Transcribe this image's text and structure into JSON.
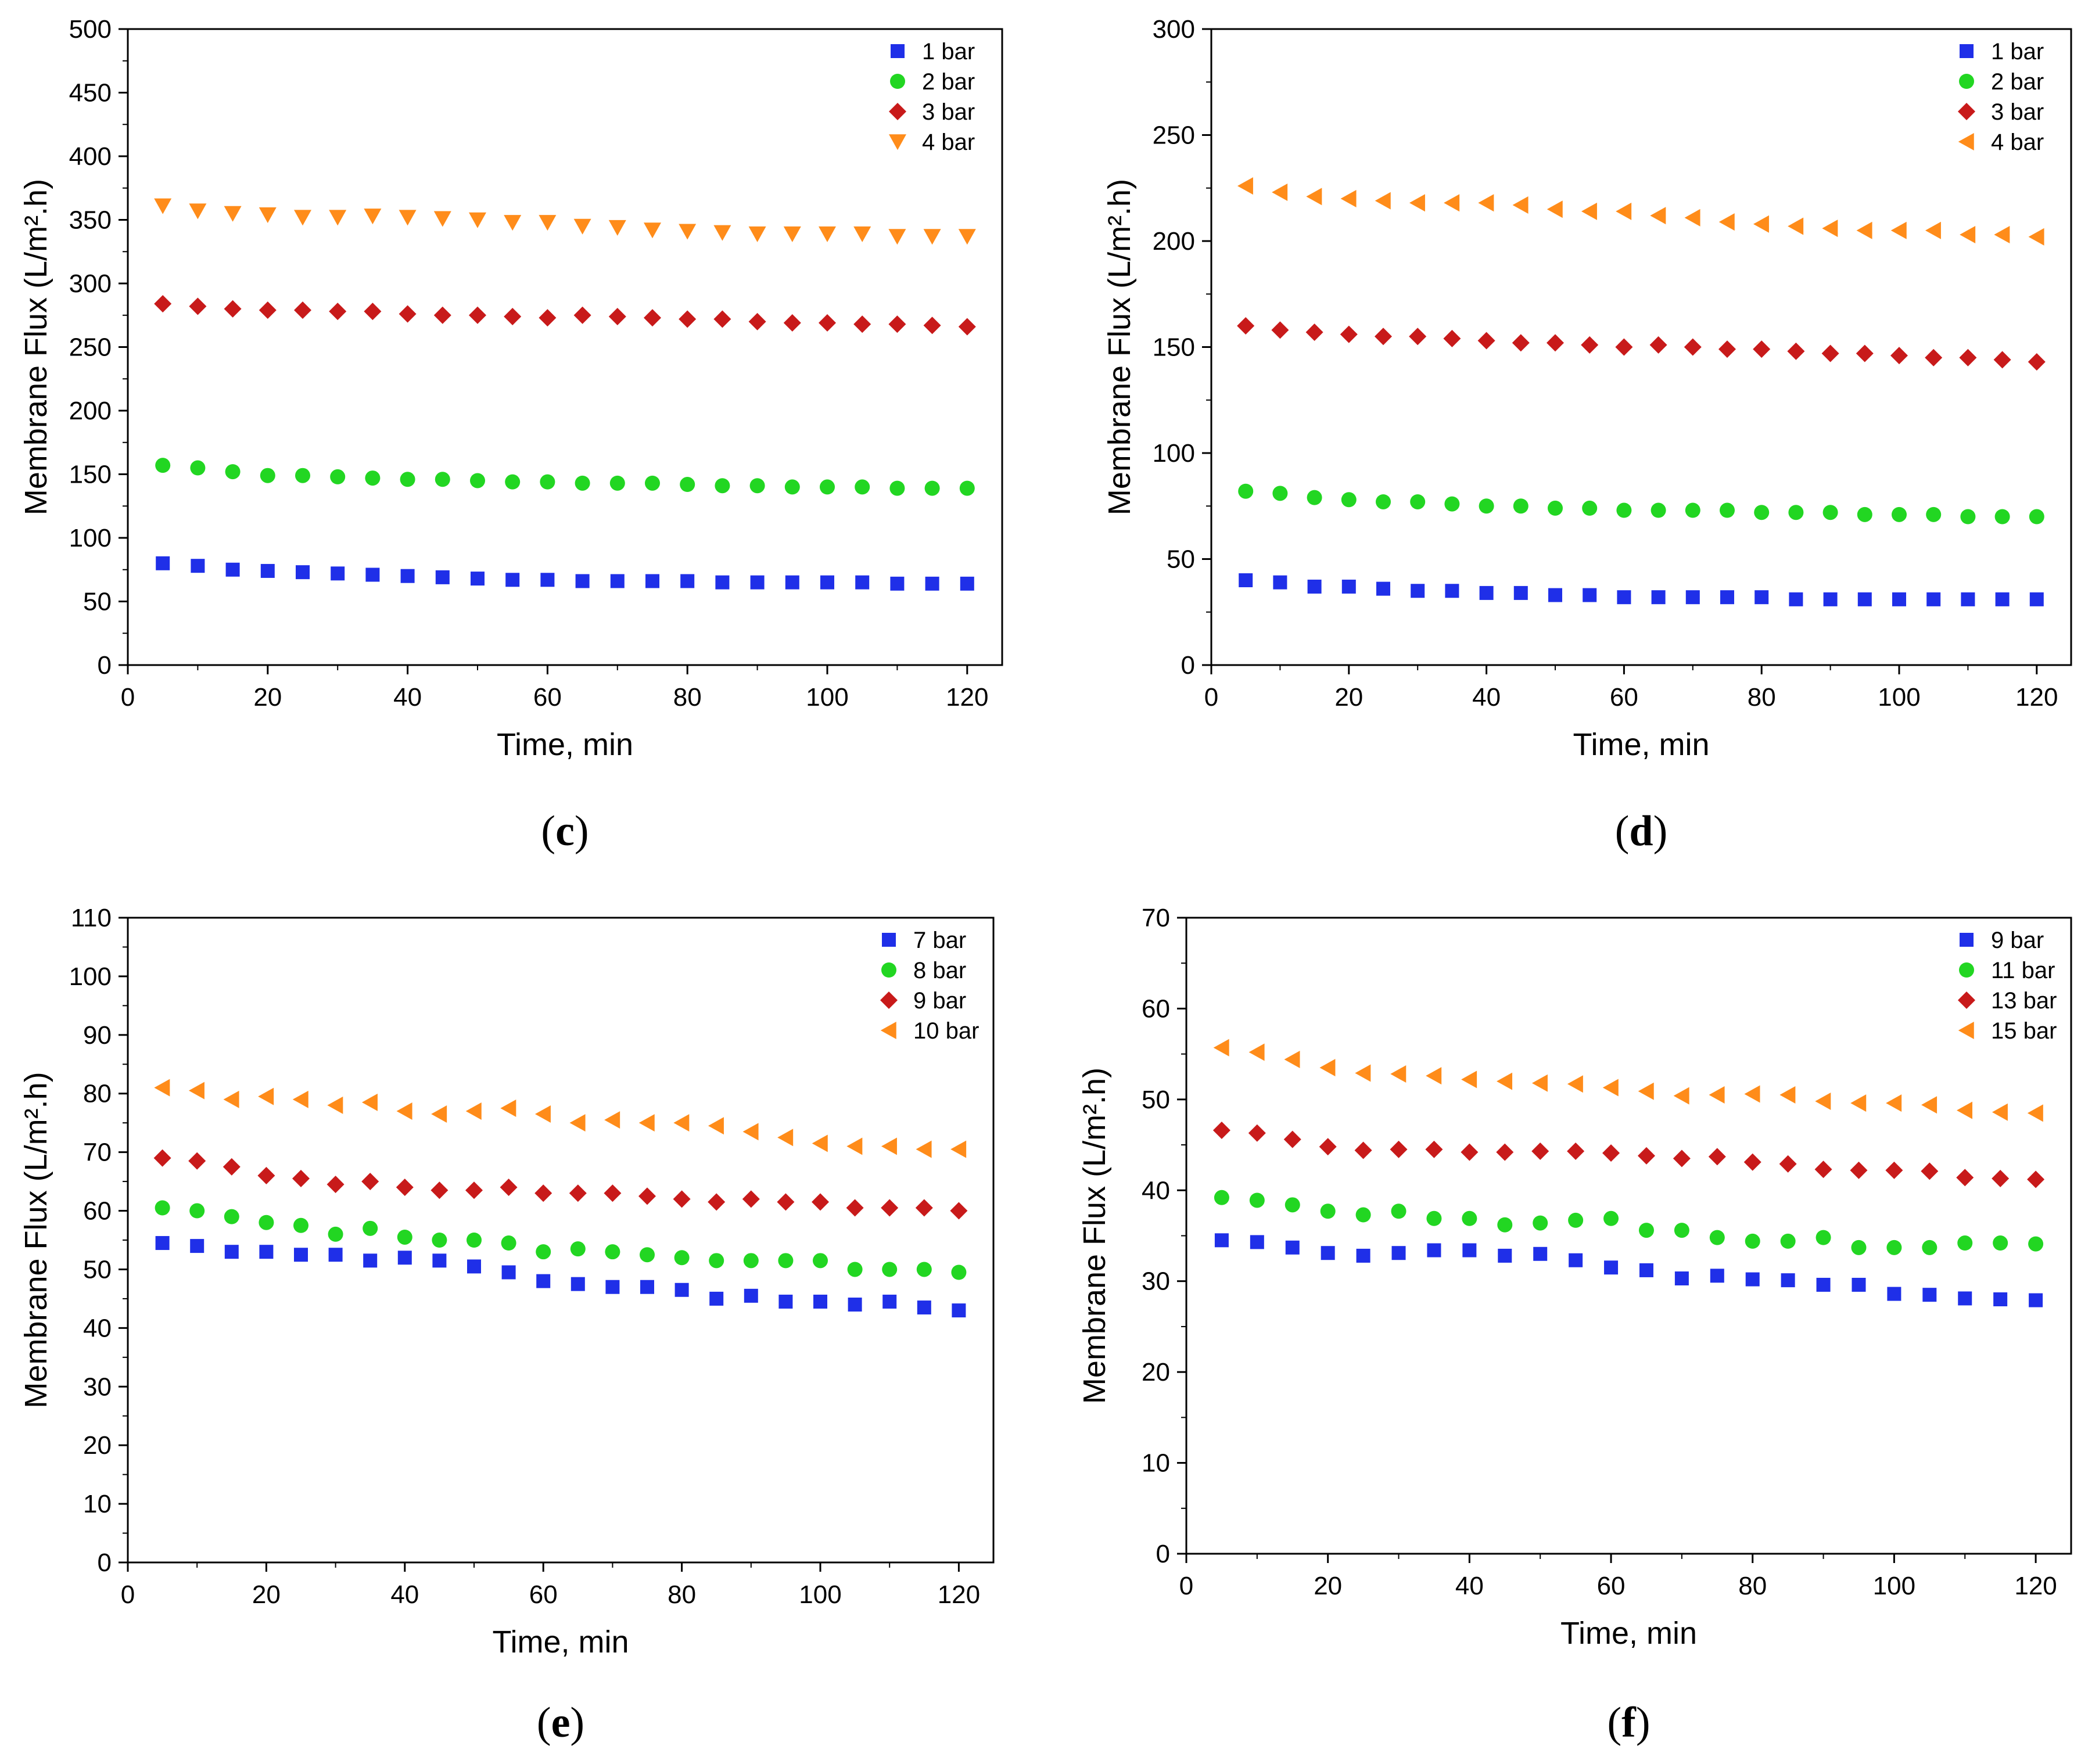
{
  "chart_data": [
    {
      "type": "scatter",
      "panel_label": "c",
      "xlabel": "Time, min",
      "ylabel": "Membrane Flux (L/m².h)",
      "xlim": [
        0,
        125
      ],
      "ylim": [
        0,
        500
      ],
      "xticks": [
        0,
        20,
        40,
        60,
        80,
        100,
        120
      ],
      "yticks": [
        0,
        50,
        100,
        150,
        200,
        250,
        300,
        350,
        400,
        450,
        500
      ],
      "legend_position": "top-right",
      "x": [
        5,
        10,
        15,
        20,
        25,
        30,
        35,
        40,
        45,
        50,
        55,
        60,
        65,
        70,
        75,
        80,
        85,
        90,
        95,
        100,
        105,
        110,
        115,
        120
      ],
      "series": [
        {
          "name": "1 bar",
          "marker": "square",
          "color": "#1f2fe8",
          "values": [
            80,
            78,
            75,
            74,
            73,
            72,
            71,
            70,
            69,
            68,
            67,
            67,
            66,
            66,
            66,
            66,
            65,
            65,
            65,
            65,
            65,
            64,
            64,
            64
          ]
        },
        {
          "name": "2 bar",
          "marker": "circle",
          "color": "#22d622",
          "values": [
            157,
            155,
            152,
            149,
            149,
            148,
            147,
            146,
            146,
            145,
            144,
            144,
            143,
            143,
            143,
            142,
            141,
            141,
            140,
            140,
            140,
            139,
            139,
            139
          ]
        },
        {
          "name": "3 bar",
          "marker": "diamond",
          "color": "#c81a1a",
          "values": [
            284,
            282,
            280,
            279,
            279,
            278,
            278,
            276,
            275,
            275,
            274,
            273,
            275,
            274,
            273,
            272,
            272,
            270,
            269,
            269,
            268,
            268,
            267,
            266
          ]
        },
        {
          "name": "4 bar",
          "marker": "triangle-down",
          "color": "#ff8c1a",
          "values": [
            361,
            357,
            355,
            354,
            352,
            352,
            353,
            352,
            351,
            350,
            348,
            348,
            345,
            344,
            342,
            341,
            340,
            339,
            339,
            339,
            339,
            337,
            337,
            337
          ]
        }
      ]
    },
    {
      "type": "scatter",
      "panel_label": "d",
      "xlabel": "Time, min",
      "ylabel": "Membrane Flux (L/m².h)",
      "xlim": [
        0,
        125
      ],
      "ylim": [
        0,
        300
      ],
      "xticks": [
        0,
        20,
        40,
        60,
        80,
        100,
        120
      ],
      "yticks": [
        0,
        50,
        100,
        150,
        200,
        250,
        300
      ],
      "legend_position": "top-right",
      "x": [
        5,
        10,
        15,
        20,
        25,
        30,
        35,
        40,
        45,
        50,
        55,
        60,
        65,
        70,
        75,
        80,
        85,
        90,
        95,
        100,
        105,
        110,
        115,
        120
      ],
      "series": [
        {
          "name": "1 bar",
          "marker": "square",
          "color": "#1f2fe8",
          "values": [
            40,
            39,
            37,
            37,
            36,
            35,
            35,
            34,
            34,
            33,
            33,
            32,
            32,
            32,
            32,
            32,
            31,
            31,
            31,
            31,
            31,
            31,
            31,
            31
          ]
        },
        {
          "name": "2 bar",
          "marker": "circle",
          "color": "#22d622",
          "values": [
            82,
            81,
            79,
            78,
            77,
            77,
            76,
            75,
            75,
            74,
            74,
            73,
            73,
            73,
            73,
            72,
            72,
            72,
            71,
            71,
            71,
            70,
            70,
            70
          ]
        },
        {
          "name": "3 bar",
          "marker": "diamond",
          "color": "#c81a1a",
          "values": [
            160,
            158,
            157,
            156,
            155,
            155,
            154,
            153,
            152,
            152,
            151,
            150,
            151,
            150,
            149,
            149,
            148,
            147,
            147,
            146,
            145,
            145,
            144,
            143
          ]
        },
        {
          "name": "4 bar",
          "marker": "triangle-left",
          "color": "#ff8c1a",
          "values": [
            226,
            223,
            221,
            220,
            219,
            218,
            218,
            218,
            217,
            215,
            214,
            214,
            212,
            211,
            209,
            208,
            207,
            206,
            205,
            205,
            205,
            203,
            203,
            202
          ]
        }
      ]
    },
    {
      "type": "scatter",
      "panel_label": "e",
      "xlabel": "Time, min",
      "ylabel": "Membrane Flux (L/m².h)",
      "xlim": [
        0,
        125
      ],
      "ylim": [
        0,
        110
      ],
      "xticks": [
        0,
        20,
        40,
        60,
        80,
        100,
        120
      ],
      "yticks": [
        0,
        10,
        20,
        30,
        40,
        50,
        60,
        70,
        80,
        90,
        100,
        110
      ],
      "legend_position": "top-right",
      "x": [
        5,
        10,
        15,
        20,
        25,
        30,
        35,
        40,
        45,
        50,
        55,
        60,
        65,
        70,
        75,
        80,
        85,
        90,
        95,
        100,
        105,
        110,
        115,
        120
      ],
      "series": [
        {
          "name": "7 bar",
          "marker": "square",
          "color": "#1f2fe8",
          "values": [
            54.5,
            54,
            53,
            53,
            52.5,
            52.5,
            51.5,
            52,
            51.5,
            50.5,
            49.5,
            48,
            47.5,
            47,
            47,
            46.5,
            45,
            45.5,
            44.5,
            44.5,
            44,
            44.5,
            43.5,
            43
          ]
        },
        {
          "name": "8 bar",
          "marker": "circle",
          "color": "#22d622",
          "values": [
            60.5,
            60,
            59,
            58,
            57.5,
            56,
            57,
            55.5,
            55,
            55,
            54.5,
            53,
            53.5,
            53,
            52.5,
            52,
            51.5,
            51.5,
            51.5,
            51.5,
            50,
            50,
            50,
            49.5
          ]
        },
        {
          "name": "9 bar",
          "marker": "diamond",
          "color": "#c81a1a",
          "values": [
            69,
            68.5,
            67.5,
            66,
            65.5,
            64.5,
            65,
            64,
            63.5,
            63.5,
            64,
            63,
            63,
            63,
            62.5,
            62,
            61.5,
            62,
            61.5,
            61.5,
            60.5,
            60.5,
            60.5,
            60
          ]
        },
        {
          "name": "10 bar",
          "marker": "triangle-left",
          "color": "#ff8c1a",
          "values": [
            81,
            80.5,
            79,
            79.5,
            79,
            78,
            78.5,
            77,
            76.5,
            77,
            77.5,
            76.5,
            75,
            75.5,
            75,
            75,
            74.5,
            73.5,
            72.5,
            71.5,
            71,
            71,
            70.5,
            70.5
          ]
        }
      ]
    },
    {
      "type": "scatter",
      "panel_label": "f",
      "xlabel": "Time, min",
      "ylabel": "Membrane Flux (L/m².h)",
      "xlim": [
        0,
        125
      ],
      "ylim": [
        0,
        70
      ],
      "xticks": [
        0,
        20,
        40,
        60,
        80,
        100,
        120
      ],
      "yticks": [
        0,
        10,
        20,
        30,
        40,
        50,
        60,
        70
      ],
      "legend_position": "top-right",
      "x": [
        5,
        10,
        15,
        20,
        25,
        30,
        35,
        40,
        45,
        50,
        55,
        60,
        65,
        70,
        75,
        80,
        85,
        90,
        95,
        100,
        105,
        110,
        115,
        120
      ],
      "series": [
        {
          "name": "9 bar",
          "marker": "square",
          "color": "#1f2fe8",
          "values": [
            34.5,
            34.3,
            33.7,
            33.1,
            32.8,
            33.1,
            33.4,
            33.4,
            32.8,
            33,
            32.3,
            31.5,
            31.2,
            30.3,
            30.6,
            30.2,
            30.1,
            29.6,
            29.6,
            28.6,
            28.5,
            28.1,
            28,
            27.9
          ]
        },
        {
          "name": "11 bar",
          "marker": "circle",
          "color": "#22d622",
          "values": [
            39.2,
            38.9,
            38.4,
            37.7,
            37.3,
            37.7,
            36.9,
            36.9,
            36.2,
            36.4,
            36.7,
            36.9,
            35.6,
            35.6,
            34.8,
            34.4,
            34.4,
            34.8,
            33.7,
            33.7,
            33.7,
            34.2,
            34.2,
            34.1
          ]
        },
        {
          "name": "13 bar",
          "marker": "diamond",
          "color": "#c81a1a",
          "values": [
            46.6,
            46.3,
            45.6,
            44.8,
            44.4,
            44.5,
            44.5,
            44.2,
            44.2,
            44.3,
            44.3,
            44.1,
            43.8,
            43.5,
            43.7,
            43.1,
            42.9,
            42.3,
            42.2,
            42.2,
            42.1,
            41.4,
            41.3,
            41.2
          ]
        },
        {
          "name": "15 bar",
          "marker": "triangle-left",
          "color": "#ff8c1a",
          "values": [
            55.7,
            55.2,
            54.4,
            53.5,
            52.9,
            52.8,
            52.6,
            52.2,
            52,
            51.8,
            51.7,
            51.3,
            50.9,
            50.4,
            50.5,
            50.6,
            50.5,
            49.8,
            49.6,
            49.6,
            49.4,
            48.8,
            48.6,
            48.5
          ]
        }
      ]
    }
  ]
}
